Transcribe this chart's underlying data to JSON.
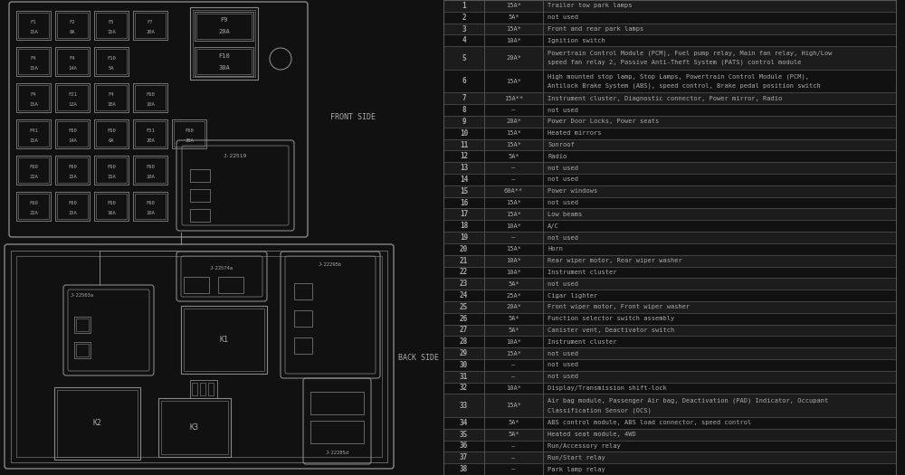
{
  "bg_color": "#111111",
  "fg_color": "#aaaaaa",
  "line_color": "#888888",
  "table_border": "#555555",
  "row_alt_color": "#1c1c1c",
  "front_side_label": "FRONT SIDE",
  "back_side_label": "BACK SIDE",
  "fuse_table": [
    [
      "1",
      "15A*",
      "Trailer tow park lamps"
    ],
    [
      "2",
      "5A*",
      "not used"
    ],
    [
      "3",
      "15A*",
      "Front and rear park lamps"
    ],
    [
      "4",
      "10A*",
      "Ignition switch"
    ],
    [
      "5",
      "20A*",
      "Powertrain Control Module (PCM), Fuel pump relay, Main fan relay, High/Low\nspeed fan relay 2, Passive Anti-Theft System (PATS) control module"
    ],
    [
      "6",
      "15A*",
      "High mounted stop lamp, Stop Lamps, Powertrain Control Module (PCM),\nAntilock Brake System (ABS), speed control, Brake pedal position switch"
    ],
    [
      "7",
      "15A**",
      "Instrument cluster, Diagnostic connector, Power mirror, Radio"
    ],
    [
      "8",
      "—",
      "not used"
    ],
    [
      "9",
      "20A*",
      "Power Door Locks, Power seats"
    ],
    [
      "10",
      "15A*",
      "Heated mirrors"
    ],
    [
      "11",
      "15A*",
      "Sunroof"
    ],
    [
      "12",
      "5A*",
      "Radio"
    ],
    [
      "13",
      "—",
      "not used"
    ],
    [
      "14",
      "—",
      "not used"
    ],
    [
      "15",
      "60A**",
      "Power windows"
    ],
    [
      "16",
      "15A*",
      "not used"
    ],
    [
      "17",
      "15A*",
      "Low beams"
    ],
    [
      "18",
      "10A*",
      "A/C"
    ],
    [
      "19",
      "—",
      "not used"
    ],
    [
      "20",
      "15A*",
      "Horn"
    ],
    [
      "21",
      "10A*",
      "Rear wiper motor, Rear wiper washer"
    ],
    [
      "22",
      "10A*",
      "Instrument cluster"
    ],
    [
      "23",
      "5A*",
      "not used"
    ],
    [
      "24",
      "25A*",
      "Cigar lighter"
    ],
    [
      "25",
      "20A*",
      "Front wiper motor, Front wiper washer"
    ],
    [
      "26",
      "5A*",
      "Function selector switch assembly"
    ],
    [
      "27",
      "5A*",
      "Canister vent, Deactivator switch"
    ],
    [
      "28",
      "10A*",
      "Instrument cluster"
    ],
    [
      "29",
      "15A*",
      "not used"
    ],
    [
      "30",
      "—",
      "not used"
    ],
    [
      "31",
      "—",
      "not used"
    ],
    [
      "32",
      "10A*",
      "Display/Transmission shift-lock"
    ],
    [
      "33",
      "15A*",
      "Air bag module, Passenger Air bag, Deactivation (PAD) Indicator, Occupant\nClassification Sensor (OCS)"
    ],
    [
      "34",
      "5A*",
      "ABS control module, ABS load connector, speed control"
    ],
    [
      "35",
      "5A*",
      "Heated seat module, 4WD"
    ],
    [
      "36",
      "—",
      "Run/Accessory relay"
    ],
    [
      "37",
      "—",
      "Run/Start relay"
    ],
    [
      "38",
      "—",
      "Park lamp relay"
    ]
  ],
  "front_fuses": [
    [
      [
        "F1",
        "15A"
      ],
      [
        "F2",
        "8A"
      ],
      [
        "F5",
        "15A"
      ],
      [
        "F7",
        "20A"
      ]
    ],
    [
      [
        "F4",
        "15A"
      ],
      [
        "F4",
        "14A"
      ],
      [
        "F10",
        "5A"
      ]
    ],
    [
      [
        "F4",
        "15A"
      ],
      [
        "F21",
        "12A"
      ],
      [
        "F4",
        "10A"
      ],
      [
        "F60",
        "10A"
      ]
    ],
    [
      [
        "F41",
        "15A"
      ],
      [
        "F60",
        "14A"
      ],
      [
        "F60",
        "6A"
      ],
      [
        "F51",
        "20A"
      ],
      [
        "F60",
        "20A"
      ]
    ],
    [
      [
        "F60",
        "22A"
      ],
      [
        "F60",
        "15A"
      ],
      [
        "F60",
        "15A"
      ],
      [
        "F60",
        "10A"
      ]
    ],
    [
      [
        "F60",
        "22A"
      ],
      [
        "F60",
        "15A"
      ],
      [
        "F60",
        "16A"
      ],
      [
        "F60",
        "10A"
      ]
    ]
  ],
  "big_fuses": [
    [
      "F9",
      "20A"
    ],
    [
      "F10",
      "30A"
    ]
  ]
}
